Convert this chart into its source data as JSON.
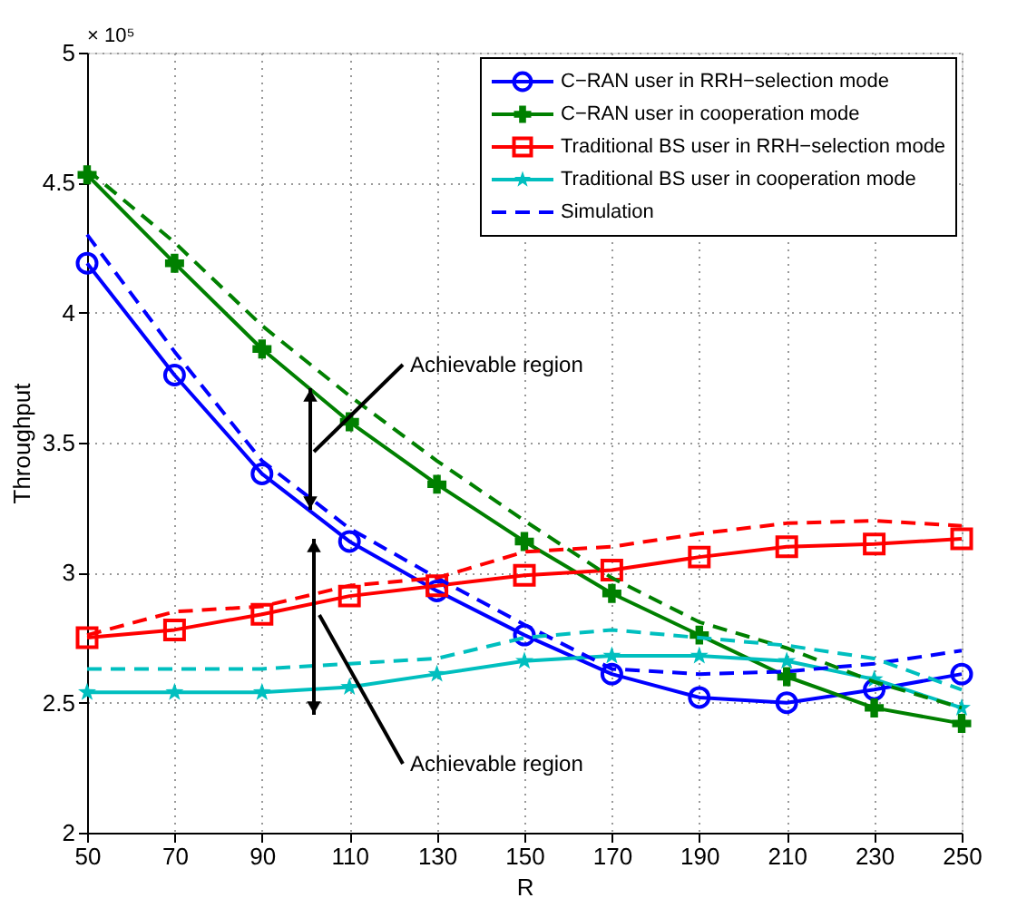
{
  "chart_data": {
    "type": "line",
    "xlabel": "R",
    "ylabel": "Throughput",
    "x": [
      50,
      70,
      90,
      110,
      130,
      150,
      170,
      190,
      210,
      230,
      250
    ],
    "xlim": [
      50,
      250
    ],
    "xticks": [
      50,
      70,
      90,
      110,
      130,
      150,
      170,
      190,
      210,
      230,
      250
    ],
    "ylim": [
      2,
      5
    ],
    "yticks": [
      2,
      2.5,
      3,
      3.5,
      4,
      4.5,
      5
    ],
    "grid": true,
    "legend": "top right",
    "series": [
      {
        "name": "C−RAN user in RRH−selection mode",
        "color": "#0000ff",
        "marker": "circle",
        "line_style": "solid",
        "values": [
          4.19,
          3.76,
          3.38,
          3.12,
          2.93,
          2.76,
          2.61,
          2.52,
          2.5,
          2.55,
          2.61
        ]
      },
      {
        "name": "C−RAN user in cooperation mode",
        "color": "#008000",
        "marker": "cross",
        "line_style": "solid",
        "values": [
          4.53,
          4.19,
          3.86,
          3.58,
          3.34,
          3.12,
          2.92,
          2.76,
          2.6,
          2.48,
          2.42
        ]
      },
      {
        "name": "Traditional BS user in RRH−selection mode",
        "color": "#ff0000",
        "marker": "square",
        "line_style": "solid",
        "values": [
          2.75,
          2.78,
          2.84,
          2.91,
          2.95,
          2.99,
          3.01,
          3.06,
          3.1,
          3.11,
          3.13
        ]
      },
      {
        "name": "Traditional BS user in cooperation mode",
        "color": "#00bfbf",
        "marker": "star",
        "line_style": "solid",
        "values": [
          2.54,
          2.54,
          2.54,
          2.56,
          2.61,
          2.66,
          2.68,
          2.68,
          2.66,
          2.59,
          2.48
        ]
      },
      {
        "name": "Simulation",
        "color": "#0000ff",
        "marker": "none",
        "line_style": "dashed",
        "values": [
          4.3,
          3.85,
          3.43,
          3.17,
          2.98,
          2.8,
          2.63,
          2.61,
          2.62,
          2.65,
          2.7
        ]
      },
      {
        "color": "#008000",
        "marker": "none",
        "line_style": "dashed",
        "values": [
          4.55,
          4.27,
          3.95,
          3.68,
          3.43,
          3.2,
          2.98,
          2.81,
          2.71,
          2.58,
          2.48
        ]
      },
      {
        "color": "#ff0000",
        "marker": "none",
        "line_style": "dashed",
        "values": [
          2.76,
          2.85,
          2.87,
          2.95,
          2.98,
          3.08,
          3.1,
          3.15,
          3.19,
          3.2,
          3.18
        ]
      },
      {
        "color": "#00bfbf",
        "marker": "none",
        "line_style": "dashed",
        "values": [
          2.63,
          2.63,
          2.63,
          2.65,
          2.67,
          2.75,
          2.78,
          2.75,
          2.72,
          2.67,
          2.55
        ]
      }
    ],
    "annotations": [
      "× 10⁵",
      "Achievable region",
      "Achievable region"
    ]
  }
}
